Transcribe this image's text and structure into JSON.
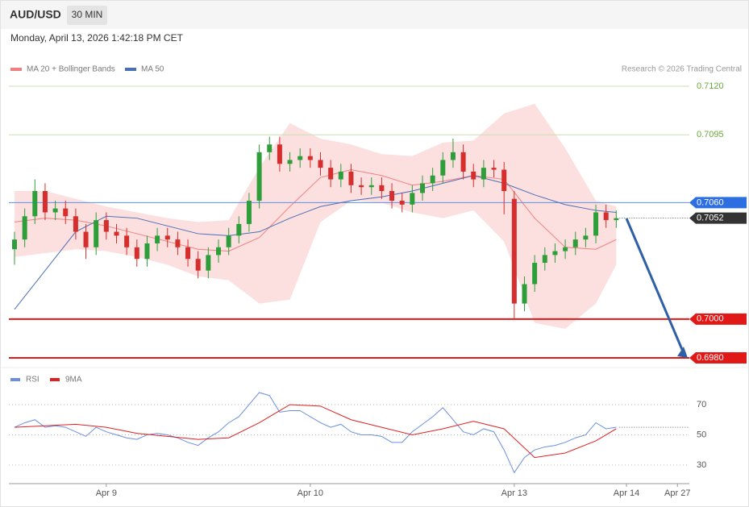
{
  "header": {
    "symbol": "AUD/USD",
    "interval": "30 MIN",
    "timestamp": "Monday, April 13, 2026 1:42:18 PM CET"
  },
  "chart_data": [
    {
      "type": "candlestick",
      "credit": "Research © 2026 Trading Central",
      "categories": [
        null,
        null,
        null,
        null,
        null,
        null,
        null,
        null,
        null,
        "Apr 9",
        null,
        null,
        null,
        null,
        null,
        null,
        null,
        null,
        null,
        null,
        null,
        null,
        null,
        null,
        null,
        null,
        null,
        null,
        null,
        "Apr 10",
        null,
        null,
        null,
        null,
        null,
        null,
        null,
        null,
        null,
        null,
        null,
        null,
        null,
        null,
        null,
        null,
        null,
        null,
        null,
        "Apr 13",
        null,
        null,
        null,
        null,
        null,
        null,
        null,
        null,
        null,
        null,
        "Apr 14",
        null,
        null,
        null,
        null,
        "Apr 27"
      ],
      "open": [
        0.7036,
        0.7041,
        0.7053,
        0.7066,
        0.7055,
        0.7057,
        0.7053,
        0.7045,
        0.7037,
        0.7051,
        0.7045,
        0.7043,
        0.7037,
        0.7031,
        0.7039,
        0.7043,
        0.7041,
        0.7037,
        0.7031,
        0.7025,
        0.7033,
        0.7037,
        0.7043,
        0.7049,
        0.7061,
        0.7086,
        0.709,
        0.708,
        0.7082,
        0.7084,
        0.7082,
        0.7078,
        0.7072,
        0.7076,
        0.7069,
        0.7068,
        0.7069,
        0.7066,
        0.7061,
        0.7059,
        0.7065,
        0.707,
        0.7074,
        0.7082,
        0.7086,
        0.7076,
        0.7072,
        0.7078,
        0.7077,
        0.7062,
        0.7008,
        0.7018,
        0.7029,
        0.7033,
        0.7035,
        0.7037,
        0.7041,
        0.7043,
        0.7055,
        0.7051,
        null,
        null,
        null,
        null,
        null,
        null
      ],
      "high": [
        0.7045,
        0.7057,
        0.7072,
        0.707,
        0.7061,
        0.7061,
        0.7057,
        0.7049,
        0.7055,
        0.7055,
        0.7049,
        0.7047,
        0.7041,
        0.7043,
        0.7047,
        0.7047,
        0.7045,
        0.7041,
        0.7035,
        0.7037,
        0.7041,
        0.7047,
        0.7053,
        0.7065,
        0.709,
        0.7094,
        0.7094,
        0.7086,
        0.7088,
        0.7088,
        0.7086,
        0.7082,
        0.708,
        0.708,
        0.7073,
        0.7073,
        0.7073,
        0.707,
        0.7065,
        0.7069,
        0.7074,
        0.7078,
        0.7086,
        0.7093,
        0.709,
        0.708,
        0.7082,
        0.7082,
        0.7081,
        0.7066,
        0.7022,
        0.7033,
        0.7037,
        0.7039,
        0.7041,
        0.7045,
        0.7047,
        0.7059,
        0.7059,
        0.7056,
        null,
        null,
        null,
        null,
        null,
        null
      ],
      "low": [
        0.7028,
        0.7037,
        0.7049,
        0.7051,
        0.7051,
        0.7049,
        0.7041,
        0.7031,
        0.7033,
        0.7041,
        0.7039,
        0.7033,
        0.7027,
        0.7027,
        0.7035,
        0.7037,
        0.7033,
        0.7027,
        0.7021,
        0.7021,
        0.7029,
        0.7033,
        0.7039,
        0.7045,
        0.7057,
        0.7082,
        0.7076,
        0.7076,
        0.7078,
        0.7078,
        0.7074,
        0.7068,
        0.7068,
        0.7065,
        0.7064,
        0.7064,
        0.7062,
        0.7057,
        0.7055,
        0.7055,
        0.7061,
        0.7066,
        0.707,
        0.7078,
        0.7072,
        0.7068,
        0.7068,
        0.7073,
        0.7054,
        0.7,
        0.7004,
        0.7014,
        0.7025,
        0.7029,
        0.7031,
        0.7033,
        0.7037,
        0.7039,
        0.7047,
        0.7047,
        null,
        null,
        null,
        null,
        null,
        null
      ],
      "close": [
        0.7041,
        0.7053,
        0.7066,
        0.7055,
        0.7057,
        0.7053,
        0.7045,
        0.7037,
        0.7051,
        0.7045,
        0.7043,
        0.7037,
        0.7031,
        0.7039,
        0.7043,
        0.7041,
        0.7037,
        0.7031,
        0.7025,
        0.7033,
        0.7037,
        0.7043,
        0.7049,
        0.7061,
        0.7086,
        0.709,
        0.708,
        0.7082,
        0.7084,
        0.7082,
        0.7078,
        0.7072,
        0.7076,
        0.7069,
        0.7068,
        0.7069,
        0.7066,
        0.7061,
        0.7059,
        0.7065,
        0.707,
        0.7074,
        0.7082,
        0.7086,
        0.7076,
        0.7072,
        0.7078,
        0.7077,
        0.7066,
        0.7008,
        0.7018,
        0.7029,
        0.7033,
        0.7035,
        0.7037,
        0.7041,
        0.7043,
        0.7055,
        0.7051,
        0.7052,
        null,
        null,
        null,
        null,
        null,
        null
      ],
      "up_color": "#2e9e3a",
      "down_color": "#d62d2d",
      "ylim": [
        0.6975,
        0.7125
      ],
      "bollinger": {
        "name": "MA 20 + Bollinger Bands",
        "color": "#f08080",
        "band_color": "#fcd9d9",
        "x": [
          0,
          3,
          6,
          9,
          12,
          15,
          18,
          21,
          24,
          27,
          30,
          33,
          36,
          39,
          42,
          45,
          48,
          51,
          54,
          57,
          59
        ],
        "middle": [
          0.705,
          0.7052,
          0.7051,
          0.7048,
          0.7044,
          0.704,
          0.7036,
          0.7035,
          0.7042,
          0.7058,
          0.7073,
          0.7077,
          0.7074,
          0.7069,
          0.7071,
          0.7074,
          0.7072,
          0.7052,
          0.7037,
          0.7036,
          0.7041
        ],
        "upper": [
          0.7066,
          0.7066,
          0.7062,
          0.7058,
          0.7055,
          0.7052,
          0.705,
          0.7051,
          0.7078,
          0.7101,
          0.7093,
          0.709,
          0.7085,
          0.7084,
          0.7091,
          0.7092,
          0.7106,
          0.7111,
          0.7088,
          0.7061,
          0.7058
        ],
        "lower": [
          0.7032,
          0.7034,
          0.7036,
          0.7035,
          0.7032,
          0.7028,
          0.7022,
          0.702,
          0.7008,
          0.701,
          0.705,
          0.7061,
          0.706,
          0.7055,
          0.7052,
          0.7056,
          0.704,
          0.6998,
          0.6995,
          0.7008,
          0.7028
        ]
      },
      "ma50": {
        "name": "MA 50",
        "color": "#4a6fb5",
        "x": [
          0,
          3,
          6,
          9,
          12,
          15,
          18,
          21,
          24,
          27,
          30,
          33,
          36,
          39,
          42,
          45,
          48,
          51,
          54,
          57,
          59
        ],
        "values": [
          0.7005,
          0.7025,
          0.7045,
          0.7053,
          0.7052,
          0.7048,
          0.7044,
          0.7043,
          0.7045,
          0.7052,
          0.7058,
          0.7061,
          0.7063,
          0.7066,
          0.707,
          0.7074,
          0.707,
          0.7064,
          0.7059,
          0.7056,
          0.7055
        ]
      },
      "levels": [
        {
          "value": 0.712,
          "label": "0.7120",
          "color": "#6aa83a",
          "line_color": "#c8e2b0",
          "style": "text",
          "line": "solid"
        },
        {
          "value": 0.7095,
          "label": "0.7095",
          "color": "#6aa83a",
          "line_color": "#c8e2b0",
          "style": "text",
          "line": "solid"
        },
        {
          "value": 0.706,
          "label": "0.7060",
          "color": "#2d6fe0",
          "line_color": "#5b8ee6",
          "style": "tag",
          "line": "solid"
        },
        {
          "value": 0.7052,
          "label": "0.7052",
          "color": "#333333",
          "line_color": "#555555",
          "style": "tag",
          "line": "dotted"
        },
        {
          "value": 0.7,
          "label": "0.7000",
          "color": "#e01818",
          "line_color": "#e01818",
          "style": "tag",
          "line": "solid"
        },
        {
          "value": 0.698,
          "label": "0.6980",
          "color": "#e01818",
          "line_color": "#e01818",
          "style": "tag",
          "line": "solid"
        }
      ]
    },
    {
      "type": "line",
      "ylim": [
        19.3,
        92.4
      ],
      "yticks": [
        70,
        50,
        30
      ],
      "grid": "dotted",
      "series": [
        {
          "name": "RSI",
          "color": "#6a8fe0",
          "values": [
            55,
            58,
            60,
            55,
            56,
            55,
            52,
            49,
            55,
            52,
            50,
            48,
            47,
            50,
            51,
            50,
            48,
            45,
            43,
            48,
            52,
            58,
            62,
            70,
            78,
            76,
            65,
            66,
            66,
            62,
            58,
            55,
            57,
            52,
            50,
            50,
            49,
            45,
            45,
            52,
            57,
            62,
            68,
            60,
            52,
            50,
            54,
            52,
            40,
            25,
            35,
            40,
            42,
            43,
            45,
            48,
            50,
            58,
            54,
            55
          ]
        },
        {
          "name": "9MA",
          "color": "#e02020",
          "x": [
            0,
            3,
            6,
            9,
            12,
            15,
            18,
            21,
            24,
            27,
            30,
            33,
            36,
            39,
            42,
            45,
            48,
            51,
            54,
            57,
            59
          ],
          "values": [
            55,
            56,
            57,
            55,
            51,
            49,
            47,
            48,
            58,
            70,
            69,
            60,
            55,
            50,
            54,
            59,
            54,
            35,
            38,
            46,
            54
          ]
        }
      ]
    }
  ]
}
